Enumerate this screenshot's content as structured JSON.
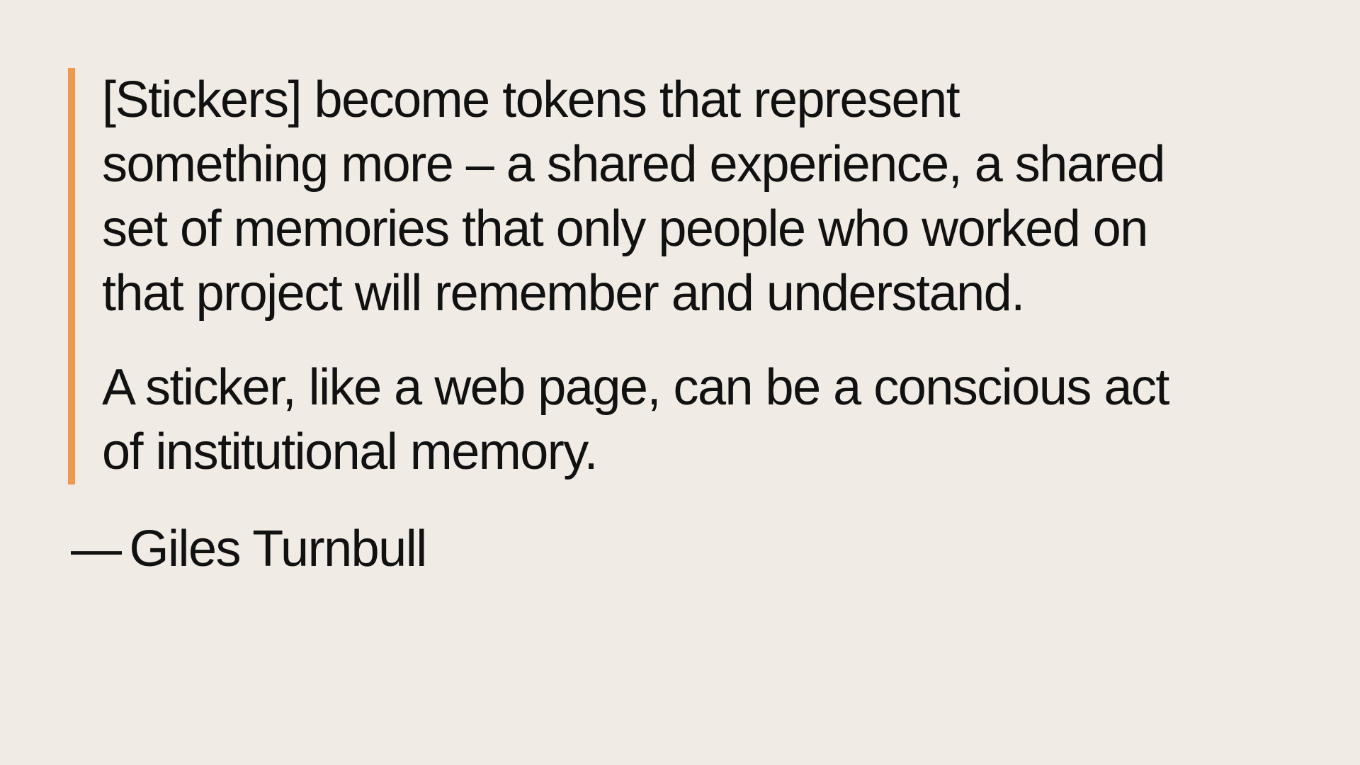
{
  "quote": {
    "accent_color": "#ee9a4a",
    "paragraphs": [
      {
        "lines": [
          "[Stickers] become tokens that represent",
          "something more – a shared experience, a shared",
          "set of memories that only people who worked on",
          "that project will remember and understand."
        ]
      },
      {
        "lines": [
          "A sticker, like a web page, can be a conscious act",
          "of institutional memory."
        ]
      }
    ]
  },
  "attribution": {
    "dash": "—",
    "author": "Giles Turnbull"
  }
}
